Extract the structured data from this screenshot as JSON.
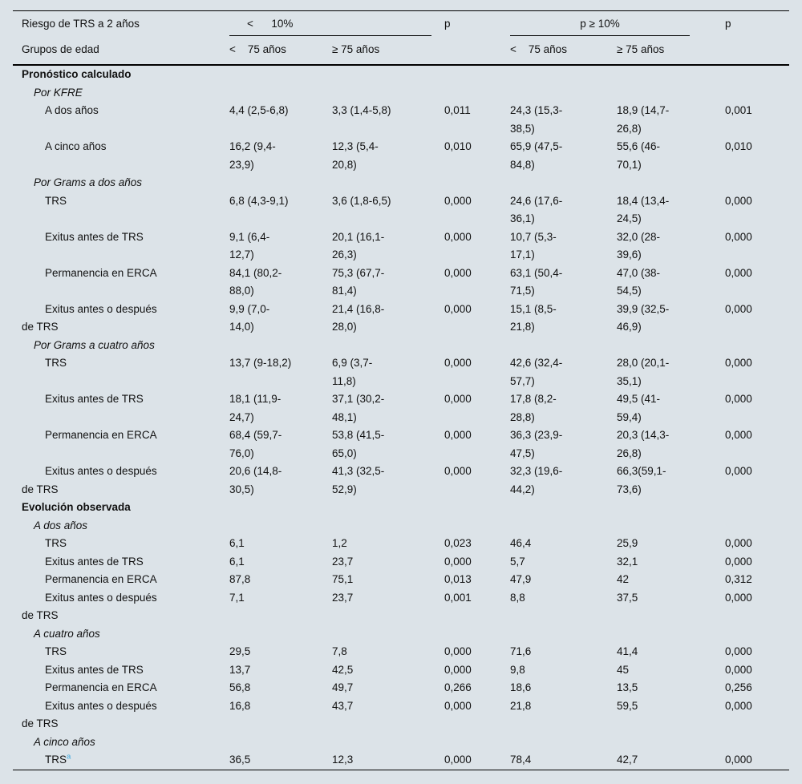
{
  "table": {
    "header": {
      "risk_label": "Riesgo de TRS a 2 años",
      "group1_label": "<      10%",
      "p_label_1": "p",
      "group2_label": "p ≥ 10%",
      "p_label_2": "p",
      "age_label": "Grupos de edad",
      "age_cols": [
        "<    75 años",
        "≥ 75 años",
        "<    75 años",
        "≥ 75 años"
      ]
    },
    "rows": [
      {
        "type": "section",
        "label": "Pronóstico calculado"
      },
      {
        "type": "subsection",
        "label": "Por KFRE"
      },
      {
        "type": "data",
        "label": "A dos años",
        "values": [
          "4,4 (2,5-6,8)",
          "3,3 (1,4-5,8)",
          "0,011",
          "24,3 (15,3-38,5)",
          "18,9 (14,7-26,8)",
          "0,001"
        ]
      },
      {
        "type": "data",
        "label": "A cinco años",
        "values": [
          "16,2 (9,4-23,9)",
          "12,3 (5,4-20,8)",
          "0,010",
          "65,9 (47,5-84,8)",
          "55,6 (46-70,1)",
          "0,010"
        ]
      },
      {
        "type": "subsection",
        "label": "Por Grams a dos años"
      },
      {
        "type": "data",
        "label": "TRS",
        "values": [
          "6,8 (4,3-9,1)",
          "3,6 (1,8-6,5)",
          "0,000",
          "24,6 (17,6-36,1)",
          "18,4 (13,4-24,5)",
          "0,000"
        ]
      },
      {
        "type": "data",
        "label": "Exitus antes de TRS",
        "values": [
          "9,1 (6,4-12,7)",
          "20,1 (16,1-26,3)",
          "0,000",
          "10,7 (5,3-17,1)",
          "32,0 (28-39,6)",
          "0,000"
        ]
      },
      {
        "type": "data",
        "label": "Permanencia en ERCA",
        "values": [
          "84,1 (80,2-88,0)",
          "75,3 (67,7-81,4)",
          "0,000",
          "63,1 (50,4-71,5)",
          "47,0 (38-54,5)",
          "0,000"
        ]
      },
      {
        "type": "data",
        "label": "Exitus antes o después de TRS",
        "values": [
          "9,9 (7,0-14,0)",
          "21,4 (16,8-28,0)",
          "0,000",
          "15,1 (8,5-21,8)",
          "39,9 (32,5-46,9)",
          "0,000"
        ]
      },
      {
        "type": "subsection",
        "label": "Por Grams a cuatro años"
      },
      {
        "type": "data",
        "label": "TRS",
        "values": [
          "13,7 (9-18,2)",
          "6,9 (3,7-11,8)",
          "0,000",
          "42,6 (32,4-57,7)",
          "28,0 (20,1-35,1)",
          "0,000"
        ]
      },
      {
        "type": "data",
        "label": "Exitus antes de TRS",
        "values": [
          "18,1 (11,9-24,7)",
          "37,1 (30,2-48,1)",
          "0,000",
          "17,8 (8,2-28,8)",
          "49,5 (41-59,4)",
          "0,000"
        ]
      },
      {
        "type": "data",
        "label": "Permanencia en ERCA",
        "values": [
          "68,4 (59,7-76,0)",
          "53,8 (41,5-65,0)",
          "0,000",
          "36,3 (23,9-47,5)",
          "20,3 (14,3-26,8)",
          "0,000"
        ]
      },
      {
        "type": "data",
        "label": "Exitus antes o después de TRS",
        "values": [
          "20,6 (14,8-30,5)",
          "41,3 (32,5-52,9)",
          "0,000",
          "32,3 (19,6-44,2)",
          "66,3(59,1-73,6)",
          "0,000"
        ]
      },
      {
        "type": "section",
        "label": "Evolución observada"
      },
      {
        "type": "subsection",
        "label": "A dos años"
      },
      {
        "type": "data",
        "label": "TRS",
        "values": [
          "6,1",
          "1,2",
          "0,023",
          "46,4",
          "25,9",
          "0,000"
        ]
      },
      {
        "type": "data",
        "label": "Exitus antes de TRS",
        "values": [
          "6,1",
          "23,7",
          "0,000",
          "5,7",
          "32,1",
          "0,000"
        ]
      },
      {
        "type": "data",
        "label": "Permanencia en ERCA",
        "values": [
          "87,8",
          "75,1",
          "0,013",
          "47,9",
          "42",
          "0,312"
        ]
      },
      {
        "type": "data",
        "label": "Exitus antes o después de TRS",
        "values": [
          "7,1",
          "23,7",
          "0,001",
          "8,8",
          "37,5",
          "0,000"
        ]
      },
      {
        "type": "subsection",
        "label": "A cuatro años"
      },
      {
        "type": "data",
        "label": "TRS",
        "values": [
          "29,5",
          "7,8",
          "0,000",
          "71,6",
          "41,4",
          "0,000"
        ]
      },
      {
        "type": "data",
        "label": "Exitus antes de TRS",
        "values": [
          "13,7",
          "42,5",
          "0,000",
          "9,8",
          "45",
          "0,000"
        ]
      },
      {
        "type": "data",
        "label": "Permanencia en ERCA",
        "values": [
          "56,8",
          "49,7",
          "0,266",
          "18,6",
          "13,5",
          "0,256"
        ]
      },
      {
        "type": "data",
        "label": "Exitus antes o después de TRS",
        "values": [
          "16,8",
          "43,7",
          "0,000",
          "21,8",
          "59,5",
          "0,000"
        ]
      },
      {
        "type": "subsection",
        "label": "A cinco años"
      },
      {
        "type": "data",
        "label": "TRS",
        "sup": "a",
        "values": [
          "36,5",
          "12,3",
          "0,000",
          "78,4",
          "42,7",
          "0,000"
        ]
      }
    ]
  },
  "footnote": {
    "marker": "a",
    "color": "#3aa7de"
  },
  "colors": {
    "background": "#dce3e8",
    "rule": "#000000",
    "text": "#111111"
  }
}
